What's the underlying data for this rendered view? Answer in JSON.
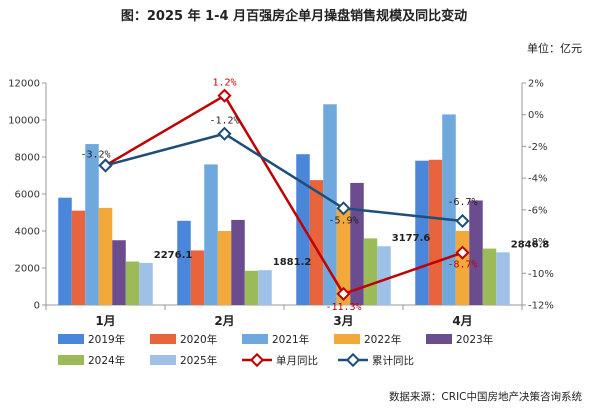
{
  "title": "图：2025 年 1-4 月百强房企单月操盘销售规模及同比变动",
  "unit": "单位：亿元",
  "source": "数据来源：CRIC中国房地产决策咨询系统",
  "chart_data": {
    "type": "bar",
    "categories": [
      "1月",
      "2月",
      "3月",
      "4月"
    ],
    "ylim": [
      0,
      12000
    ],
    "yticks": [
      0,
      2000,
      4000,
      6000,
      8000,
      10000,
      12000
    ],
    "y2lim": [
      -12,
      2
    ],
    "y2ticks": [
      "2%",
      "0%",
      "-2%",
      "-4%",
      "-6%",
      "-8%",
      "-10%",
      "-12%"
    ],
    "y2tick_values": [
      2,
      0,
      -2,
      -4,
      -6,
      -8,
      -10,
      -12
    ],
    "series": [
      {
        "name": "2019年",
        "color": "#4a86d9",
        "values": [
          5800,
          4550,
          8150,
          7800
        ]
      },
      {
        "name": "2020年",
        "color": "#e8643c",
        "values": [
          5100,
          2950,
          6750,
          7850
        ]
      },
      {
        "name": "2021年",
        "color": "#6fa8dc",
        "values": [
          8700,
          7600,
          10850,
          10300
        ]
      },
      {
        "name": "2022年",
        "color": "#f3a93a",
        "values": [
          5250,
          4000,
          5250,
          4000
        ]
      },
      {
        "name": "2023年",
        "color": "#6a4c8f",
        "values": [
          3500,
          4600,
          6600,
          5650
        ]
      },
      {
        "name": "2024年",
        "color": "#9bbb59",
        "values": [
          2350,
          1850,
          3600,
          3050
        ]
      },
      {
        "name": "2025年",
        "color": "#9fc1e8",
        "values": [
          2276.1,
          1881.2,
          3177.6,
          2846.8
        ]
      }
    ],
    "bar_labels": [
      "2276.1",
      "1881.2",
      "3177.6",
      "2846.8"
    ],
    "lines": [
      {
        "name": "单月同比",
        "color": "#c00000",
        "values": [
          -3.2,
          1.2,
          -11.3,
          -8.7
        ],
        "labels": [
          "",
          "1.2%",
          "-11.3%",
          "-8.7%"
        ]
      },
      {
        "name": "累计同比",
        "color": "#1f4e79",
        "values": [
          -3.2,
          -1.2,
          -5.9,
          -6.7
        ],
        "labels": [
          "-3.2%",
          "-1.2%",
          "-5.9%",
          "-6.7%"
        ]
      }
    ]
  }
}
